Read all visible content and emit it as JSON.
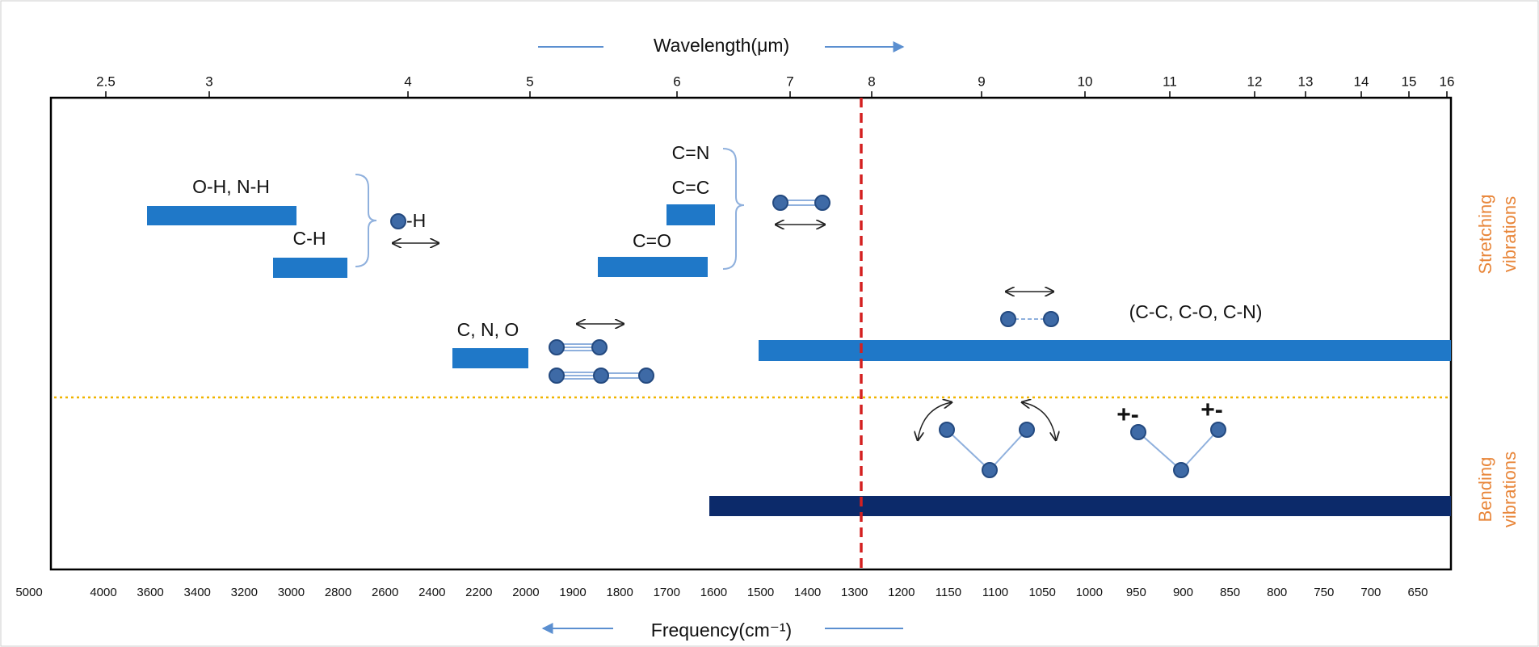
{
  "top_axis": {
    "title": "Wavelength(μm)",
    "ticks": [
      "2.5",
      "3",
      "4",
      "5",
      "6",
      "7",
      "8",
      "9",
      "10",
      "11",
      "12",
      "13",
      "14",
      "15",
      "16"
    ]
  },
  "bottom_axis": {
    "title": "Frequency(cm⁻¹)",
    "ticks": [
      "5000",
      "4000",
      "3600",
      "3400",
      "3200",
      "3000",
      "2800",
      "2600",
      "2400",
      "2200",
      "2000",
      "1900",
      "1800",
      "1700",
      "1600",
      "1500",
      "1400",
      "1300",
      "1200",
      "1150",
      "1100",
      "1050",
      "1000",
      "950",
      "900",
      "850",
      "800",
      "750",
      "700",
      "650"
    ]
  },
  "labels": {
    "oh_nh": "O-H, N-H",
    "ch": "C-H",
    "h": "-H",
    "cn_double": "C=N",
    "cc_double": "C=C",
    "co_double": "C=O",
    "cno": "C, N, O",
    "single_bonds": "(C-C, C-O, C-N)",
    "plus_minus_1": "+-",
    "plus_minus_2": "+-"
  },
  "side_labels": {
    "stretching": [
      "Stretching",
      "vibrations"
    ],
    "bending": [
      "Bending",
      "vibrations"
    ]
  }
}
